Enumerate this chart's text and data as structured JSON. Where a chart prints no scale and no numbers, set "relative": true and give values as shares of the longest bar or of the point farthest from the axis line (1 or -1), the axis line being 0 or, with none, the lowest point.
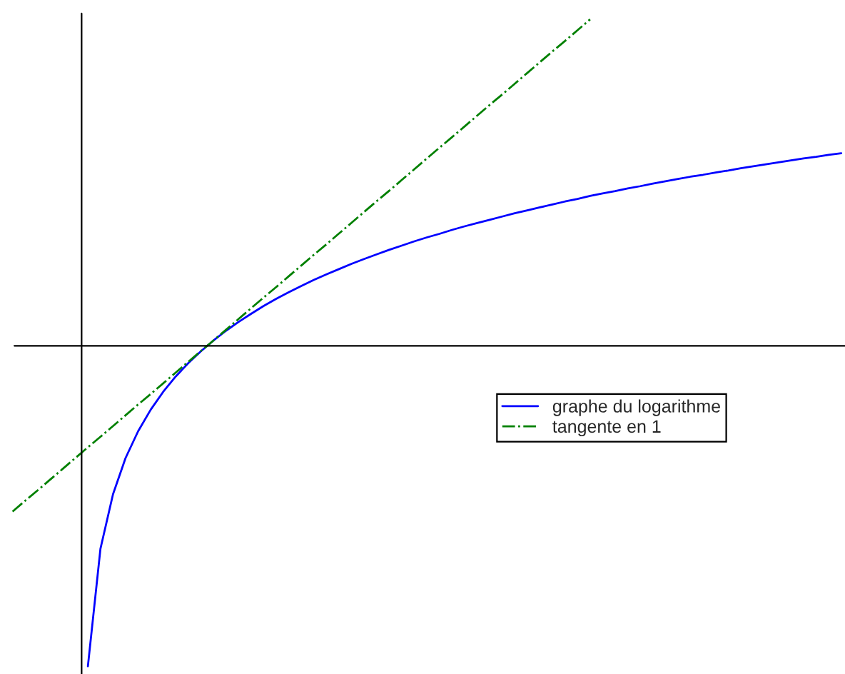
{
  "chart_data": {
    "type": "line",
    "relative": true,
    "legend": "right",
    "categories": [
      null,
      null,
      null,
      null,
      null,
      null,
      null,
      null,
      null,
      null,
      null,
      null,
      null,
      null,
      null,
      null,
      null,
      null,
      null,
      null,
      null,
      null,
      null,
      null,
      null,
      null,
      null,
      null,
      null,
      null,
      null,
      null,
      null,
      null,
      null,
      null,
      null,
      null,
      null,
      null,
      null,
      null,
      null,
      null,
      null,
      null,
      null,
      null,
      null,
      null,
      null,
      null,
      null,
      null,
      null,
      null,
      null,
      null,
      null,
      null,
      null,
      null,
      null,
      null,
      null,
      null,
      null
    ],
    "series": [
      {
        "name": "graphe du logarithme",
        "color": "#0000ff",
        "line_style": "solid",
        "values": [
          null,
          null,
          null,
          null,
          null,
          null,
          -0.982,
          -0.622,
          -0.455,
          -0.344,
          -0.262,
          -0.196,
          -0.141,
          -0.094,
          -0.053,
          -0.017,
          0.016,
          0.046,
          0.073,
          0.098,
          0.122,
          0.144,
          0.164,
          0.183,
          0.202,
          0.219,
          0.235,
          0.251,
          0.266,
          0.28,
          0.294,
          0.307,
          0.32,
          0.332,
          0.343,
          0.355,
          0.366,
          0.376,
          0.386,
          0.396,
          0.406,
          0.415,
          0.424,
          0.433,
          0.442,
          0.45,
          0.459,
          0.467,
          0.474,
          0.482,
          0.489,
          0.497,
          0.504,
          0.511,
          0.518,
          0.524,
          0.531,
          0.537,
          0.544,
          0.55,
          0.556,
          0.562,
          0.568,
          0.574,
          0.579,
          0.585,
          0.59
        ]
      },
      {
        "name": "tangente en 1",
        "color": "#008000",
        "line_style": "dashdot",
        "values": [
          -0.508,
          -0.475,
          -0.443,
          -0.41,
          -0.377,
          -0.344,
          -0.311,
          -0.279,
          -0.246,
          -0.213,
          -0.18,
          -0.148,
          -0.115,
          -0.082,
          -0.049,
          -0.016,
          0.016,
          0.049,
          0.082,
          0.115,
          0.148,
          0.18,
          0.213,
          0.246,
          0.279,
          0.311,
          0.344,
          0.377,
          0.41,
          0.443,
          0.475,
          0.508,
          0.541,
          0.574,
          0.607,
          0.639,
          0.672,
          0.705,
          0.738,
          0.77,
          0.803,
          0.836,
          0.869,
          0.902,
          0.934,
          0.967,
          1.0,
          null,
          null,
          null,
          null,
          null,
          null,
          null,
          null,
          null,
          null,
          null,
          null,
          null,
          null,
          null,
          null,
          null,
          null,
          null,
          null
        ]
      }
    ]
  }
}
